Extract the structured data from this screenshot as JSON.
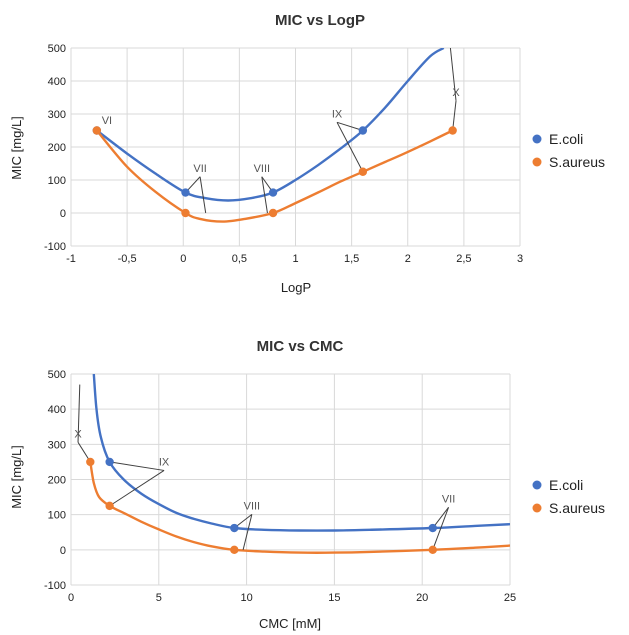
{
  "colors": {
    "ecoli": "#4472C4",
    "saureus": "#ED7D31",
    "grid": "#d9d9d9",
    "leader": "#404040"
  },
  "chart_data": [
    {
      "type": "line",
      "title": "MIC vs LogP",
      "xlabel": "LogP",
      "ylabel": "MIC [mg/L]",
      "xlim": [
        -1,
        3
      ],
      "ylim": [
        -100,
        500
      ],
      "xticks": [
        "-1",
        "-0,5",
        "0",
        "0,5",
        "1",
        "1,5",
        "2",
        "2,5",
        "3"
      ],
      "yticks": [
        "-100",
        "0",
        "100",
        "200",
        "300",
        "400",
        "500"
      ],
      "grid": true,
      "legend": "right",
      "series": [
        {
          "name": "E.coli",
          "points": [
            [
              -0.77,
              250
            ],
            [
              0.02,
              62
            ],
            [
              0.8,
              62
            ],
            [
              1.6,
              250
            ]
          ],
          "curve": [
            [
              -0.77,
              250
            ],
            [
              -0.5,
              180
            ],
            [
              -0.25,
              120
            ],
            [
              0.02,
              62
            ],
            [
              0.2,
              45
            ],
            [
              0.4,
              38
            ],
            [
              0.6,
              45
            ],
            [
              0.8,
              62
            ],
            [
              1.0,
              100
            ],
            [
              1.2,
              145
            ],
            [
              1.4,
              195
            ],
            [
              1.6,
              250
            ],
            [
              1.8,
              320
            ],
            [
              2.0,
              400
            ],
            [
              2.2,
              475
            ],
            [
              2.32,
              500
            ]
          ]
        },
        {
          "name": "S.aureus",
          "points": [
            [
              -0.77,
              250
            ],
            [
              0.02,
              0
            ],
            [
              0.8,
              0
            ],
            [
              1.6,
              125
            ],
            [
              2.4,
              250
            ]
          ],
          "curve": [
            [
              -0.77,
              250
            ],
            [
              -0.5,
              140
            ],
            [
              -0.25,
              65
            ],
            [
              0.02,
              0
            ],
            [
              0.15,
              -18
            ],
            [
              0.35,
              -26
            ],
            [
              0.55,
              -18
            ],
            [
              0.8,
              0
            ],
            [
              1.0,
              30
            ],
            [
              1.2,
              62
            ],
            [
              1.4,
              95
            ],
            [
              1.6,
              125
            ],
            [
              1.8,
              155
            ],
            [
              2.0,
              185
            ],
            [
              2.2,
              217
            ],
            [
              2.4,
              250
            ]
          ]
        }
      ],
      "annotations": [
        {
          "label": "VI",
          "x": -0.68,
          "y": 270,
          "leaders": []
        },
        {
          "label": "VII",
          "x": 0.15,
          "y": 125,
          "leaders": [
            [
              0.02,
              62
            ],
            [
              0.2,
              0
            ]
          ]
        },
        {
          "label": "VIII",
          "x": 0.7,
          "y": 125,
          "leaders": [
            [
              0.8,
              62
            ],
            [
              0.75,
              0
            ]
          ]
        },
        {
          "label": "IX",
          "x": 1.37,
          "y": 290,
          "leaders": [
            [
              1.6,
              250
            ],
            [
              1.6,
              125
            ]
          ]
        },
        {
          "label": "X",
          "x": 2.43,
          "y": 355,
          "leaders": [
            [
              2.38,
              500
            ],
            [
              2.4,
              250
            ]
          ]
        }
      ]
    },
    {
      "type": "line",
      "title": "MIC vs CMC",
      "xlabel": "CMC [mM]",
      "ylabel": "MIC [mg/L]",
      "xlim": [
        0,
        25
      ],
      "ylim": [
        -100,
        500
      ],
      "xticks": [
        "0",
        "5",
        "10",
        "15",
        "20",
        "25"
      ],
      "yticks": [
        "-100",
        "0",
        "100",
        "200",
        "300",
        "400",
        "500"
      ],
      "grid": true,
      "legend": "right",
      "series": [
        {
          "name": "E.coli",
          "points": [
            [
              2.2,
              250
            ],
            [
              9.3,
              62
            ],
            [
              20.6,
              62
            ]
          ],
          "curve": [
            [
              1.3,
              500
            ],
            [
              1.45,
              400
            ],
            [
              1.7,
              320
            ],
            [
              2.2,
              250
            ],
            [
              3,
              200
            ],
            [
              4,
              160
            ],
            [
              5,
              130
            ],
            [
              6,
              105
            ],
            [
              7,
              88
            ],
            [
              8,
              75
            ],
            [
              9.3,
              62
            ],
            [
              11,
              57
            ],
            [
              13,
              55
            ],
            [
              15,
              55
            ],
            [
              17,
              57
            ],
            [
              20.6,
              62
            ],
            [
              23,
              68
            ],
            [
              25,
              73
            ]
          ]
        },
        {
          "name": "S.aureus",
          "points": [
            [
              1.1,
              250
            ],
            [
              2.2,
              125
            ],
            [
              9.3,
              0
            ],
            [
              20.6,
              0
            ]
          ],
          "curve": [
            [
              1.1,
              250
            ],
            [
              1.3,
              190
            ],
            [
              1.6,
              150
            ],
            [
              2.2,
              125
            ],
            [
              3,
              105
            ],
            [
              4,
              80
            ],
            [
              5,
              58
            ],
            [
              6,
              38
            ],
            [
              7,
              22
            ],
            [
              8,
              10
            ],
            [
              9.3,
              0
            ],
            [
              11,
              -5
            ],
            [
              13,
              -8
            ],
            [
              15,
              -8
            ],
            [
              17,
              -6
            ],
            [
              20.6,
              0
            ],
            [
              23,
              6
            ],
            [
              25,
              12
            ]
          ]
        }
      ],
      "annotations": [
        {
          "label": "X",
          "x": 0.4,
          "y": 320,
          "leaders": [
            [
              0.5,
              470
            ],
            [
              1.1,
              250
            ]
          ]
        },
        {
          "label": "IX",
          "x": 5.3,
          "y": 240,
          "leaders": [
            [
              2.2,
              250
            ],
            [
              2.2,
              125
            ]
          ]
        },
        {
          "label": "VIII",
          "x": 10.3,
          "y": 115,
          "leaders": [
            [
              9.3,
              62
            ],
            [
              9.8,
              0
            ]
          ]
        },
        {
          "label": "VII",
          "x": 21.5,
          "y": 135,
          "leaders": [
            [
              20.6,
              62
            ],
            [
              20.6,
              0
            ]
          ]
        }
      ]
    }
  ]
}
